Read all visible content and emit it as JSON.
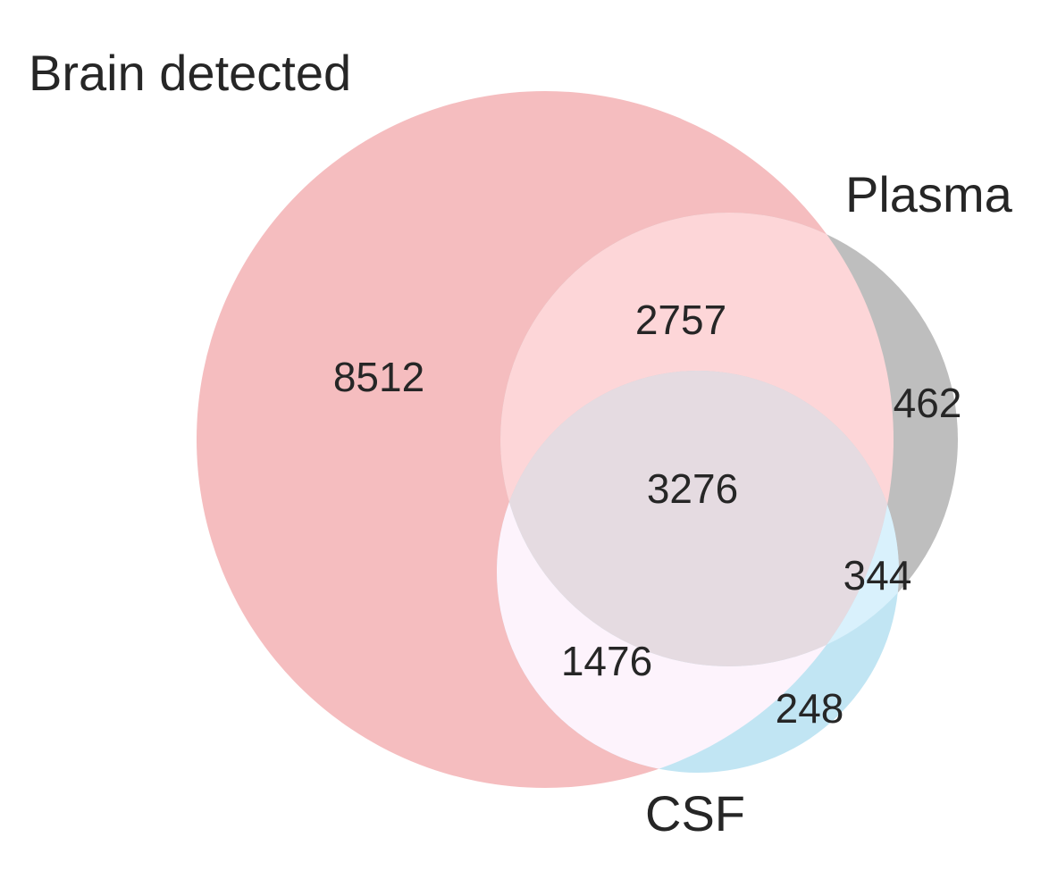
{
  "chart_data": {
    "type": "venn",
    "sets": [
      {
        "key": "brain",
        "name": "Brain detected",
        "color": "#f4b3b5"
      },
      {
        "key": "plasma",
        "name": "Plasma",
        "color": "#bdbdbd"
      },
      {
        "key": "csf",
        "name": "CSF",
        "color": "#bfe6f4"
      }
    ],
    "regions": {
      "brain_only": {
        "label": "8512",
        "value": 8512
      },
      "brain_plasma": {
        "label": "2757",
        "value": 2757
      },
      "plasma_only": {
        "label": "462",
        "value": 462
      },
      "all_three": {
        "label": "3276",
        "value": 3276
      },
      "plasma_csf": {
        "label": "344",
        "value": 344
      },
      "brain_csf": {
        "label": "1476",
        "value": 1476
      },
      "csf_only": {
        "label": "248",
        "value": 248
      }
    }
  }
}
